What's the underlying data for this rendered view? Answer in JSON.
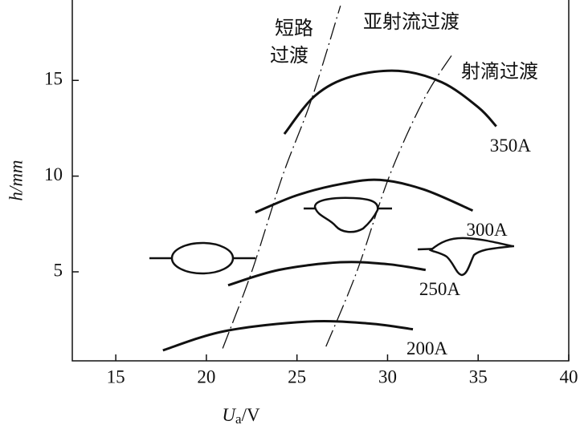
{
  "chart_data": {
    "type": "line",
    "x_label": [
      "U",
      "a",
      "/V"
    ],
    "y_label": "h/mm",
    "xlim": [
      12.6,
      40
    ],
    "ylim": [
      0.35,
      19.2
    ],
    "xticks": [
      15,
      20,
      25,
      30,
      35,
      40
    ],
    "yticks": [
      5,
      10,
      15
    ],
    "grid": false,
    "series": [
      {
        "name": "350A",
        "color": "#111111",
        "x": [
          24.3,
          26,
          28,
          30.6,
          33,
          35,
          36
        ],
        "values": [
          12.2,
          14.2,
          15.2,
          15.5,
          14.9,
          13.6,
          12.6
        ]
      },
      {
        "name": "300A",
        "color": "#111111",
        "x": [
          22.7,
          25,
          27.5,
          29.6,
          32,
          34.7
        ],
        "values": [
          8.1,
          9.0,
          9.6,
          9.8,
          9.3,
          8.2
        ]
      },
      {
        "name": "250A",
        "color": "#111111",
        "x": [
          21.2,
          24,
          27.4,
          30,
          32.1
        ],
        "values": [
          4.3,
          5.1,
          5.5,
          5.4,
          5.1
        ]
      },
      {
        "name": "200A",
        "color": "#111111",
        "x": [
          17.6,
          21,
          25.6,
          29,
          31.4
        ],
        "values": [
          0.9,
          1.9,
          2.4,
          2.3,
          2.0
        ]
      }
    ],
    "boundaries": [
      {
        "x": [
          20.9,
          22.5,
          24.2,
          25.8,
          27.4
        ],
        "values": [
          1.0,
          5,
          10,
          14,
          18.9
        ]
      },
      {
        "x": [
          26.6,
          28.3,
          30.1,
          32,
          33.6
        ],
        "values": [
          1.1,
          5,
          10,
          14,
          16.4
        ]
      }
    ],
    "annotations": [
      {
        "lines": [
          "短路",
          "过渡"
        ]
      },
      {
        "lines": [
          "亚射流过渡"
        ]
      },
      {
        "lines": [
          "射滴过渡"
        ]
      }
    ]
  }
}
